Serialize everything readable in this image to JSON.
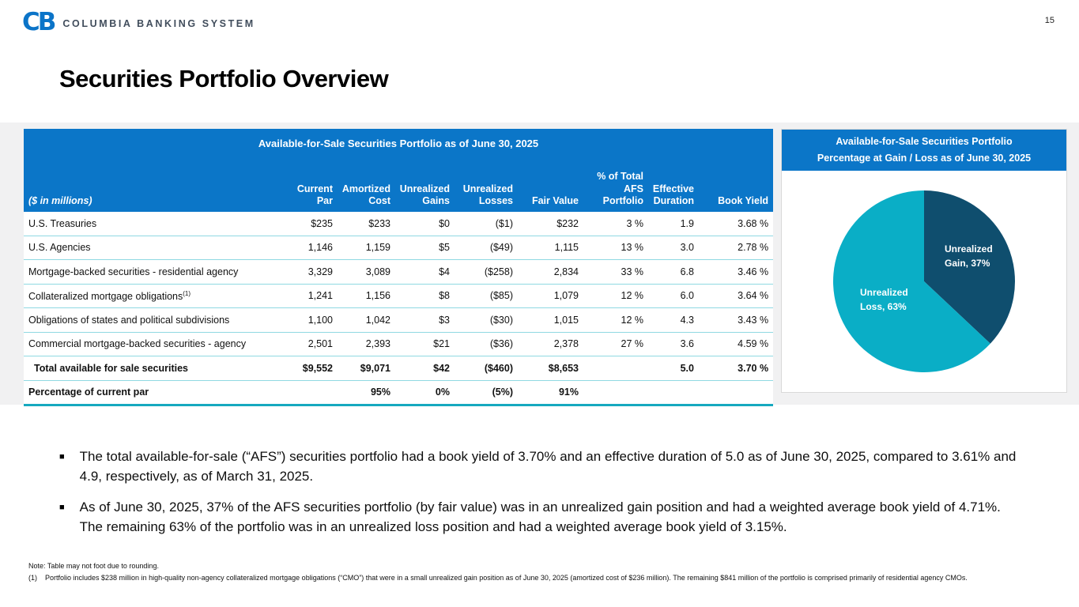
{
  "page": {
    "number": "15"
  },
  "logo": {
    "monogram": "CB",
    "text": "COLUMBIA BANKING SYSTEM"
  },
  "title": "Securities Portfolio Overview",
  "colors": {
    "header_blue": "#0b76c8",
    "pie_gain_navy": "#0f4e6e",
    "pie_loss_teal": "#0aaec6",
    "row_divider_cyan": "#8fd9e2",
    "table_bottom_teal": "#16a9bf",
    "band_gray": "#f1f1f2",
    "logo_blue": "#0b74c8"
  },
  "table": {
    "title": "Available-for-Sale Securities Portfolio as of June 30, 2025",
    "unit_label": "($ in millions)",
    "columns": [
      "Current\nPar",
      "Amortized\nCost",
      "Unrealized\nGains",
      "Unrealized\nLosses",
      "Fair Value",
      "% of Total\nAFS\nPortfolio",
      "Effective\nDuration",
      "Book Yield"
    ],
    "rows": [
      {
        "label": "U.S. Treasuries",
        "sup": "",
        "bold": false,
        "indent": false,
        "values": [
          "$235",
          "$233",
          "$0",
          "($1)",
          "$232",
          "3 %",
          "1.9",
          "3.68 %"
        ]
      },
      {
        "label": "U.S. Agencies",
        "sup": "",
        "bold": false,
        "indent": false,
        "values": [
          "1,146",
          "1,159",
          "$5",
          "($49)",
          "1,115",
          "13 %",
          "3.0",
          "2.78 %"
        ]
      },
      {
        "label": "Mortgage-backed securities - residential agency",
        "sup": "",
        "bold": false,
        "indent": false,
        "values": [
          "3,329",
          "3,089",
          "$4",
          "($258)",
          "2,834",
          "33 %",
          "6.8",
          "3.46 %"
        ]
      },
      {
        "label": "Collateralized mortgage obligations",
        "sup": "(1)",
        "bold": false,
        "indent": false,
        "values": [
          "1,241",
          "1,156",
          "$8",
          "($85)",
          "1,079",
          "12 %",
          "6.0",
          "3.64 %"
        ]
      },
      {
        "label": "Obligations of states and political subdivisions",
        "sup": "",
        "bold": false,
        "indent": false,
        "values": [
          "1,100",
          "1,042",
          "$3",
          "($30)",
          "1,015",
          "12 %",
          "4.3",
          "3.43 %"
        ]
      },
      {
        "label": "Commercial mortgage-backed securities - agency",
        "sup": "",
        "bold": false,
        "indent": false,
        "values": [
          "2,501",
          "2,393",
          "$21",
          "($36)",
          "2,378",
          "27 %",
          "3.6",
          "4.59 %"
        ]
      },
      {
        "label": "Total available for sale securities",
        "sup": "",
        "bold": true,
        "indent": true,
        "values": [
          "$9,552",
          "$9,071",
          "$42",
          "($460)",
          "$8,653",
          "",
          "5.0",
          "3.70 %"
        ]
      },
      {
        "label": "Percentage of current par",
        "sup": "",
        "bold": true,
        "indent": false,
        "values": [
          "",
          "95%",
          "0%",
          "(5%)",
          "91%",
          "",
          "",
          ""
        ]
      }
    ]
  },
  "chart_data": {
    "type": "pie",
    "title": "Available-for-Sale Securities Portfolio — Percentage at Gain / Loss as of June 30, 2025",
    "title_line1": "Available-for-Sale Securities Portfolio",
    "title_line2": "Percentage at Gain / Loss as of June 30, 2025",
    "labels": [
      "Unrealized Gain",
      "Unrealized Loss"
    ],
    "values": [
      37,
      63
    ],
    "colors": [
      "#0f4e6e",
      "#0aaec6"
    ],
    "start_angle_deg_from_top": 0,
    "direction": "clockwise",
    "slice_labels": [
      "Unrealized\nGain, 37%",
      "Unrealized\nLoss, 63%"
    ],
    "legend_position": "none"
  },
  "bullets": [
    "The total available-for-sale (“AFS”) securities portfolio had a book yield of 3.70% and an effective duration of 5.0 as of June 30, 2025, compared to 3.61% and 4.9, respectively, as of March 31, 2025.",
    "As of June 30, 2025, 37% of the AFS securities portfolio (by fair value) was in an unrealized gain position and had a weighted average book yield of 4.71%. The remaining 63% of the portfolio was in an unrealized loss position and had a weighted average book yield of 3.15%."
  ],
  "footnotes": {
    "note": "Note: Table may not foot due to rounding.",
    "items": [
      {
        "marker": "(1)",
        "text": "Portfolio includes $238 million in high-quality non-agency collateralized mortgage obligations (“CMO”) that were in a small unrealized gain position as of June 30, 2025 (amortized cost of $236 million). The remaining $841 million of the portfolio is comprised primarily of residential agency CMOs."
      }
    ]
  },
  "bullet_glyph": "■"
}
